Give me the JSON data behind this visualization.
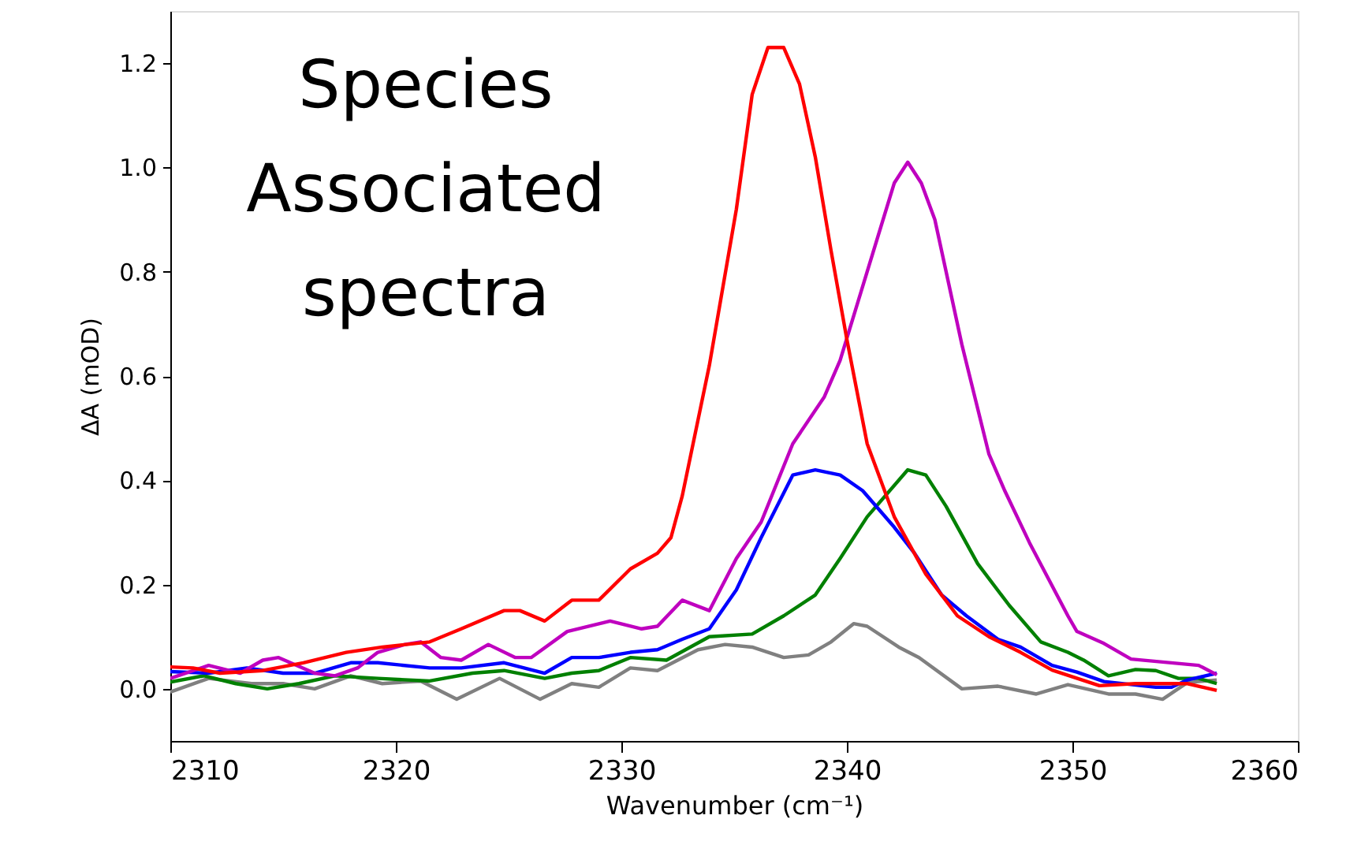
{
  "chart_data": {
    "type": "line",
    "annotations": [
      "Species\nAssociated\nspectra"
    ],
    "xlabel": "Wavenumber (cm⁻¹)",
    "ylabel": "ΔA (mOD)",
    "xlim": [
      2310,
      2360
    ],
    "xticks": [
      2310,
      2320,
      2330,
      2340,
      2350,
      2360
    ],
    "ylim": [
      -0.1,
      1.3
    ],
    "yticks": [
      {
        "value": 0,
        "label": "0.0"
      },
      {
        "value": 0.2,
        "label": "0.2"
      },
      {
        "value": 0.4,
        "label": "0.4"
      },
      {
        "value": 0.6,
        "label": "0.6"
      },
      {
        "value": 0.8,
        "label": "0.8"
      },
      {
        "value": 1.0,
        "label": "1.0"
      },
      {
        "value": 1.2,
        "label": "1.2"
      }
    ],
    "grid": false,
    "marker": "none",
    "line_style": "solid",
    "series": [
      {
        "color": "#808080",
        "x": [
          2310.0,
          2311.7,
          2313.6,
          2315.0,
          2316.4,
          2318.0,
          2319.4,
          2321.1,
          2322.7,
          2324.6,
          2326.4,
          2327.8,
          2329.0,
          2330.4,
          2331.6,
          2333.4,
          2334.6,
          2335.8,
          2337.2,
          2338.3,
          2339.3,
          2340.3,
          2340.9,
          2342.3,
          2343.2,
          2345.1,
          2346.7,
          2348.4,
          2349.8,
          2351.6,
          2352.8,
          2354.0,
          2355.1,
          2356.4
        ],
        "values": [
          -0.006,
          0.02,
          0.01,
          0.01,
          0.0,
          0.025,
          0.01,
          0.015,
          -0.02,
          0.02,
          -0.02,
          0.01,
          0.003,
          0.04,
          0.035,
          0.075,
          0.085,
          0.08,
          0.06,
          0.065,
          0.09,
          0.125,
          0.12,
          0.08,
          0.06,
          0.0,
          0.005,
          -0.01,
          0.008,
          -0.01,
          -0.01,
          -0.02,
          0.012,
          0.017
        ]
      },
      {
        "color": "#008000",
        "x": [
          2310.0,
          2311.5,
          2312.9,
          2314.3,
          2315.7,
          2317.3,
          2319.2,
          2321.5,
          2323.4,
          2324.8,
          2326.6,
          2327.8,
          2329.0,
          2330.4,
          2332.0,
          2333.9,
          2335.8,
          2337.2,
          2338.6,
          2339.7,
          2340.9,
          2342.7,
          2343.5,
          2344.4,
          2345.8,
          2347.2,
          2348.6,
          2349.8,
          2350.5,
          2351.6,
          2352.8,
          2353.7,
          2354.7,
          2355.6,
          2356.4
        ],
        "values": [
          0.013,
          0.025,
          0.01,
          0.0,
          0.01,
          0.025,
          0.02,
          0.015,
          0.03,
          0.035,
          0.02,
          0.03,
          0.035,
          0.06,
          0.055,
          0.1,
          0.105,
          0.14,
          0.18,
          0.25,
          0.33,
          0.42,
          0.41,
          0.35,
          0.24,
          0.16,
          0.09,
          0.07,
          0.055,
          0.025,
          0.037,
          0.035,
          0.02,
          0.02,
          0.01
        ]
      },
      {
        "color": "#0000ff",
        "x": [
          2310.0,
          2311.7,
          2313.4,
          2315.0,
          2316.4,
          2318.0,
          2319.2,
          2321.5,
          2322.9,
          2324.8,
          2326.6,
          2327.8,
          2329.0,
          2330.4,
          2331.6,
          2332.7,
          2333.9,
          2335.1,
          2336.2,
          2337.6,
          2338.6,
          2339.7,
          2340.7,
          2342.1,
          2343.0,
          2344.2,
          2345.3,
          2346.7,
          2347.7,
          2349.1,
          2350.2,
          2351.4,
          2353.7,
          2354.4,
          2355.1,
          2356.4
        ],
        "values": [
          0.033,
          0.03,
          0.04,
          0.03,
          0.03,
          0.05,
          0.05,
          0.04,
          0.04,
          0.05,
          0.03,
          0.06,
          0.06,
          0.07,
          0.075,
          0.095,
          0.115,
          0.19,
          0.29,
          0.41,
          0.42,
          0.41,
          0.38,
          0.31,
          0.26,
          0.18,
          0.14,
          0.095,
          0.08,
          0.045,
          0.032,
          0.014,
          0.003,
          0.003,
          0.017,
          0.03
        ]
      },
      {
        "color": "#bf00bf",
        "x": [
          2310.0,
          2311.7,
          2313.1,
          2314.1,
          2314.8,
          2316.4,
          2317.3,
          2318.3,
          2319.2,
          2320.4,
          2321.1,
          2322.0,
          2322.9,
          2324.1,
          2325.3,
          2326.0,
          2327.6,
          2329.5,
          2330.9,
          2331.6,
          2332.7,
          2333.9,
          2335.1,
          2336.2,
          2337.6,
          2339.0,
          2339.7,
          2340.9,
          2342.1,
          2342.7,
          2343.3,
          2343.9,
          2345.1,
          2346.3,
          2347.0,
          2348.1,
          2349.8,
          2350.2,
          2351.4,
          2352.6,
          2355.6,
          2356.4
        ],
        "values": [
          0.02,
          0.045,
          0.03,
          0.055,
          0.06,
          0.03,
          0.025,
          0.04,
          0.07,
          0.085,
          0.09,
          0.06,
          0.055,
          0.085,
          0.06,
          0.06,
          0.11,
          0.13,
          0.115,
          0.12,
          0.17,
          0.15,
          0.25,
          0.32,
          0.47,
          0.56,
          0.63,
          0.8,
          0.97,
          1.01,
          0.97,
          0.9,
          0.66,
          0.45,
          0.38,
          0.28,
          0.14,
          0.11,
          0.087,
          0.057,
          0.045,
          0.027
        ]
      },
      {
        "color": "#ff0000",
        "x": [
          2310.0,
          2311.0,
          2312.2,
          2314.1,
          2315.9,
          2317.8,
          2319.4,
          2321.5,
          2322.9,
          2324.8,
          2325.5,
          2326.6,
          2327.8,
          2329.0,
          2330.4,
          2331.6,
          2332.2,
          2332.7,
          2333.9,
          2335.1,
          2335.8,
          2336.5,
          2337.2,
          2337.9,
          2338.6,
          2339.3,
          2340.0,
          2340.9,
          2342.1,
          2343.5,
          2344.9,
          2346.3,
          2347.7,
          2349.1,
          2351.2,
          2352.8,
          2355.1,
          2356.4
        ],
        "values": [
          0.042,
          0.04,
          0.03,
          0.035,
          0.05,
          0.07,
          0.08,
          0.09,
          0.115,
          0.15,
          0.15,
          0.13,
          0.17,
          0.17,
          0.23,
          0.26,
          0.29,
          0.37,
          0.62,
          0.92,
          1.14,
          1.23,
          1.23,
          1.16,
          1.02,
          0.84,
          0.67,
          0.47,
          0.33,
          0.22,
          0.14,
          0.1,
          0.07,
          0.036,
          0.006,
          0.01,
          0.01,
          -0.003
        ]
      }
    ]
  }
}
